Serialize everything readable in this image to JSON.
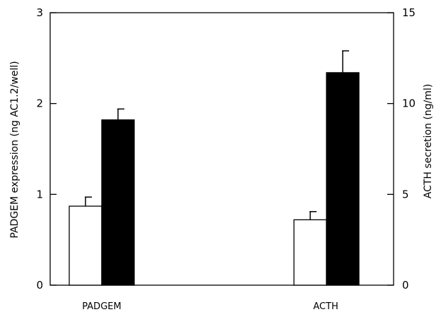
{
  "chart_data": {
    "type": "bar",
    "categories": [
      "PADGEM",
      "ACTH"
    ],
    "series": [
      {
        "fill": "#ffffff",
        "values": [
          0.87,
          3.6
        ],
        "errors": [
          0.1,
          0.45
        ],
        "axis": [
          "left",
          "right"
        ]
      },
      {
        "fill": "#000000",
        "values": [
          1.82,
          11.7
        ],
        "errors": [
          0.12,
          1.2
        ],
        "axis": [
          "left",
          "right"
        ]
      }
    ],
    "ylabel_left": "PADGEM expression (ng AC1.2/well)",
    "ylabel_right": "ACTH secretion (ng/ml)",
    "ylim_left": [
      0,
      3
    ],
    "ylim_right": [
      0,
      15
    ],
    "yticks_left": [
      "0",
      "1",
      "2",
      "3"
    ],
    "yticks_right": [
      "0",
      "5",
      "10",
      "15"
    ],
    "grid": false,
    "legend": "none"
  }
}
